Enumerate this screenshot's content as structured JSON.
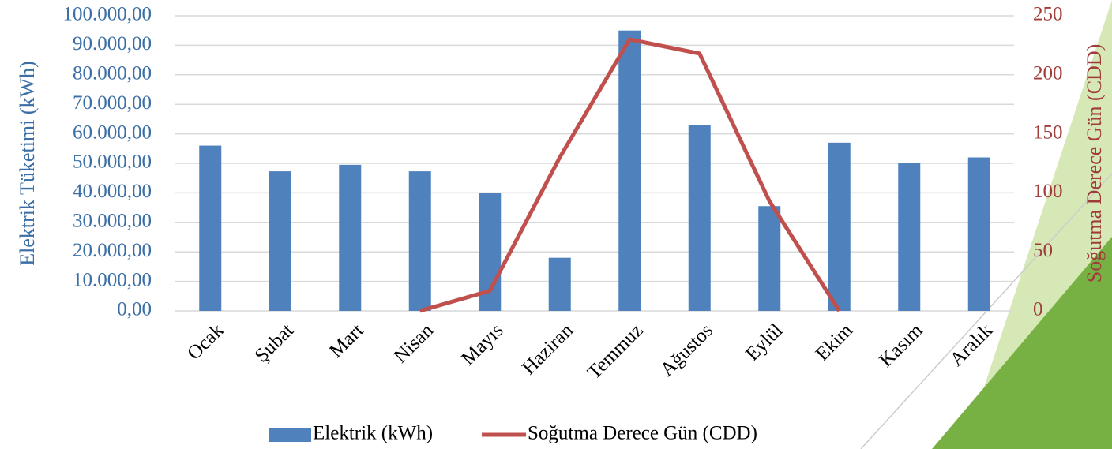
{
  "chart_data": {
    "type": "bar_line",
    "categories": [
      "Ocak",
      "Şubat",
      "Mart",
      "Nisan",
      "Mayıs",
      "Haziran",
      "Temmuz",
      "Ağustos",
      "Eylül",
      "Ekim",
      "Kasım",
      "Aralık"
    ],
    "series": [
      {
        "name": "Elektrik (kWh)",
        "type": "bar",
        "color": "#4f81bd",
        "axis": "y",
        "values": [
          56000,
          47300,
          49500,
          47300,
          40000,
          18000,
          95000,
          63000,
          35500,
          57000,
          50200,
          52000
        ]
      },
      {
        "name": "Soğutma Derece Gün (CDD)",
        "type": "line",
        "color": "#c0504d",
        "axis": "y2",
        "values": [
          null,
          null,
          null,
          0,
          17,
          130,
          230,
          218,
          93,
          0,
          null,
          null
        ]
      }
    ],
    "ylabel": "Elektrik Tüketimi (kWh)",
    "y2label": "Soğutma Derece Gün (CDD)",
    "ylim": [
      0,
      100000
    ],
    "yticks": [
      {
        "value": 0,
        "label": "0,00"
      },
      {
        "value": 10000,
        "label": "10.000,00"
      },
      {
        "value": 20000,
        "label": "20.000,00"
      },
      {
        "value": 30000,
        "label": "30.000,00"
      },
      {
        "value": 40000,
        "label": "40.000,00"
      },
      {
        "value": 50000,
        "label": "50.000,00"
      },
      {
        "value": 60000,
        "label": "60.000,00"
      },
      {
        "value": 70000,
        "label": "70.000,00"
      },
      {
        "value": 80000,
        "label": "80.000,00"
      },
      {
        "value": 90000,
        "label": "90.000,00"
      },
      {
        "value": 100000,
        "label": "100.000,00"
      }
    ],
    "y2lim": [
      0,
      250
    ],
    "y2ticks": [
      0,
      50,
      100,
      150,
      200,
      250
    ],
    "grid": true,
    "legend": "bottom"
  }
}
